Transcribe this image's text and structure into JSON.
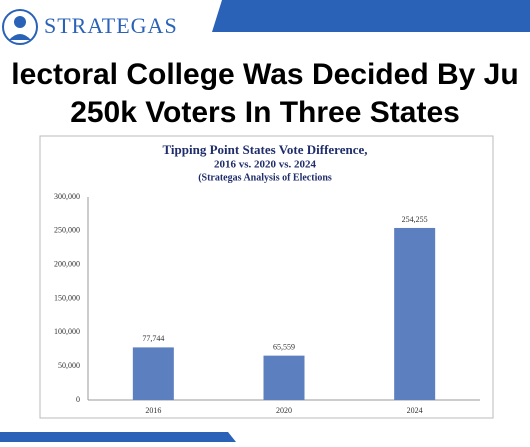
{
  "header": {
    "logo_text": "STRATEGAS"
  },
  "slide_title": [
    "lectoral College Was Decided By Ju",
    "250k Voters In Three States"
  ],
  "chart_data": {
    "type": "bar",
    "title": [
      "Tipping Point States Vote Difference,",
      "2016 vs. 2020 vs. 2024",
      "(Strategas Analysis of Elections"
    ],
    "categories": [
      "2016",
      "2020",
      "2024"
    ],
    "values": [
      77744,
      65559,
      254255
    ],
    "value_labels": [
      "77,744",
      "65,559",
      "254,255"
    ],
    "color": "#5b7fbf",
    "ylim": [
      0,
      300000
    ],
    "yticks": [
      0,
      {
        "value": 50000,
        "label": "50,000"
      },
      {
        "value": 100000,
        "label": "100,000"
      },
      {
        "value": 150000,
        "label": "150,000"
      },
      {
        "value": 200000,
        "label": "200,000"
      },
      {
        "value": 250000,
        "label": "250,000"
      },
      {
        "value": 300000,
        "label": "300,000"
      }
    ],
    "grid": false
  }
}
